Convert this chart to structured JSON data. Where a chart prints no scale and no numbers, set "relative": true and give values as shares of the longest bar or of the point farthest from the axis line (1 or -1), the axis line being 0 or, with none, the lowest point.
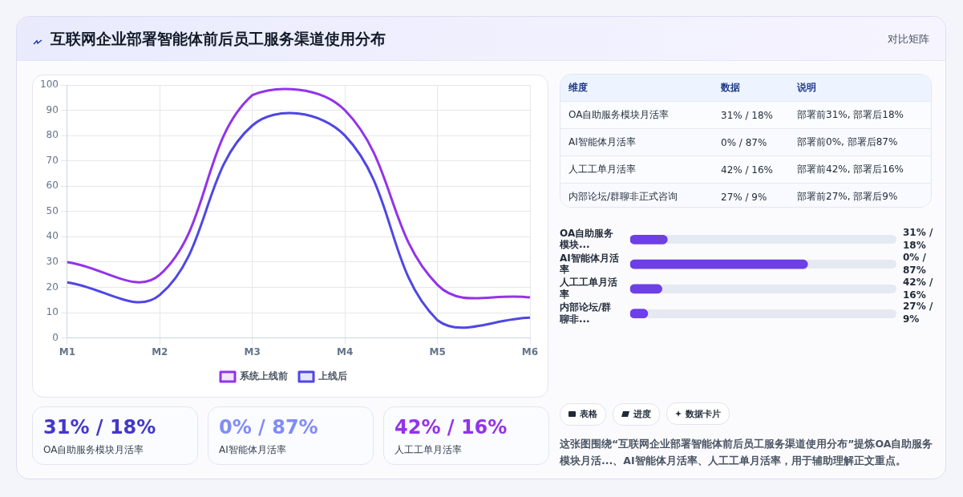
{
  "chart_data": [
    {
      "type": "other",
      "title": "互联网企业部署智能体前后员工服务渠道使用分布",
      "annotations": [
        "对比矩阵"
      ]
    },
    {
      "type": "line",
      "categories": [
        "M1",
        "M2",
        "M3",
        "M4",
        "M5",
        "M6"
      ],
      "series": [
        {
          "name": "系统上线前",
          "color": "#9333ea",
          "values": [
            30,
            25,
            96,
            90,
            21,
            16
          ]
        },
        {
          "name": "上线后",
          "color": "#4f46e5",
          "values": [
            22,
            17,
            84,
            80,
            7,
            8
          ]
        }
      ],
      "ylim": [
        0,
        100
      ],
      "yticks": [
        0,
        10,
        20,
        30,
        40,
        50,
        60,
        70,
        80,
        90,
        100
      ],
      "grid": true,
      "legend": "bottom",
      "marker": "none",
      "line_style": "solid"
    },
    {
      "type": "other",
      "annotations": [
        "维度",
        "数据",
        "说明",
        "OA自助服务模块月活率",
        "31% / 18%",
        "部署前31%, 部署后18%",
        "AI智能体月活率",
        "0% / 87%",
        "部署前0%, 部署后87%",
        "人工工单月活率",
        "42% / 16%",
        "部署前42%, 部署后16%",
        "内部论坛/群聊非正式咨询",
        "27% / 9%",
        "部署前27%, 部署后9%"
      ]
    },
    {
      "type": "bar",
      "orientation": "horizontal",
      "categories": [
        "OA自助服务模块...",
        "AI智能体月活率",
        "人工工单月活率",
        "内部论坛/群聊非..."
      ],
      "values": [
        0.21,
        1,
        0.18,
        0.1
      ],
      "color": "#6d3fe6",
      "relative": true,
      "annotations": [
        "31% / 18%",
        "0% / 87%",
        "42% / 16%",
        "27% / 9%"
      ]
    },
    {
      "type": "other",
      "annotations": [
        "31% / 18%",
        "OA自助服务模块月活率",
        "0% / 87%",
        "AI智能体月活率",
        "42% / 16%",
        "人工工单月活率"
      ],
      "colors": [
        "#4338ca",
        "#818cf8",
        "#9333ea"
      ]
    },
    {
      "type": "other",
      "annotations": [
        "表格",
        "进度",
        "数据卡片",
        "这张图围绕“互联网企业部署智能体前后员工服务渠道使用分布”提炼OA自助服务模块月活...、AI智能体月活率、人工工单月活率，用于辅助理解正文重点。"
      ]
    }
  ]
}
